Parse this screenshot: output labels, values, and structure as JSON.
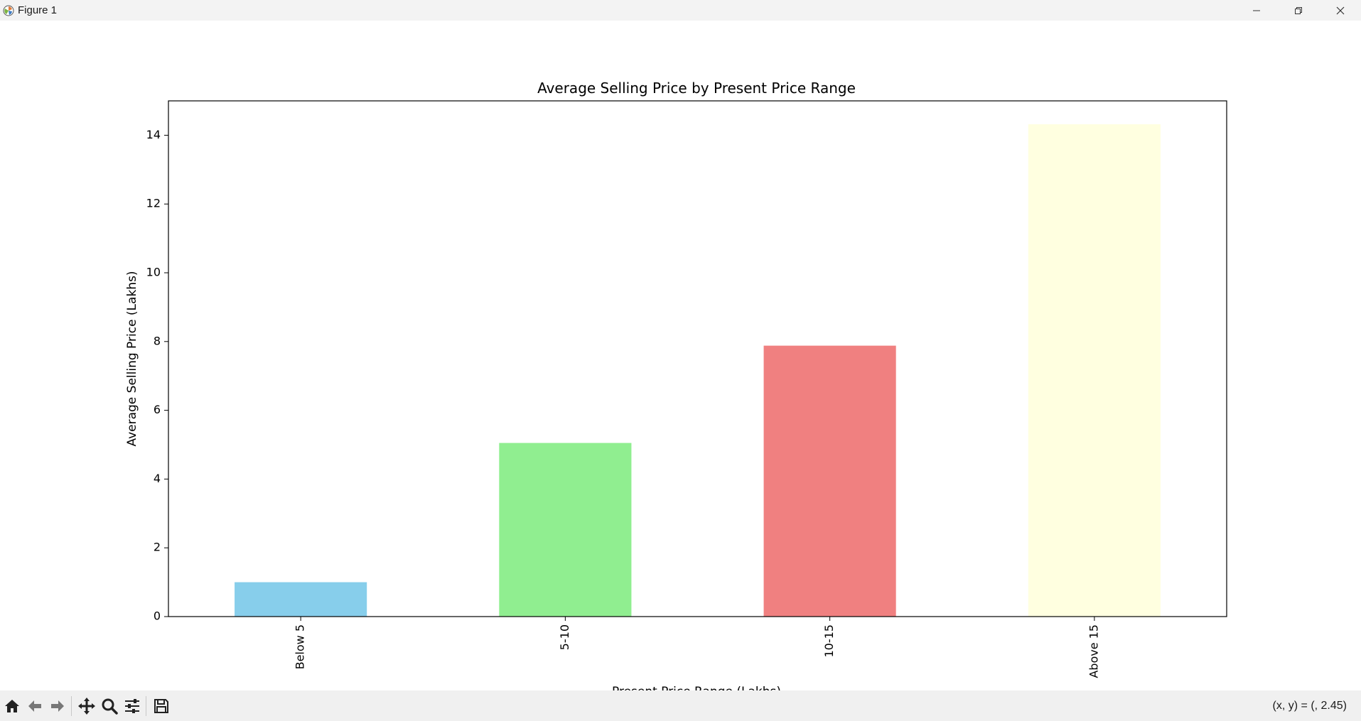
{
  "window": {
    "title": "Figure 1",
    "icons": {
      "app": "matplotlib-icon",
      "minimize": "minimize-icon",
      "restore": "restore-icon",
      "close": "close-icon"
    }
  },
  "toolbar": {
    "tools": [
      "home-icon",
      "back-arrow-icon",
      "forward-arrow-icon",
      "pan-icon",
      "zoom-icon",
      "subplots-config-icon",
      "save-icon"
    ],
    "coords_text": "(x, y) = (, 2.45)"
  },
  "chart_data": {
    "type": "bar",
    "title": "Average Selling Price by Present Price Range",
    "xlabel": "Present Price Range (Lakhs)",
    "ylabel": "Average Selling Price (Lakhs)",
    "categories": [
      "Below 5",
      "5-10",
      "10-15",
      "Above 15"
    ],
    "values": [
      1.0,
      5.05,
      7.88,
      14.32
    ],
    "colors": [
      "#87ceeb",
      "#90ee90",
      "#f08080",
      "#ffffe0"
    ],
    "ylim": [
      0,
      15.0
    ],
    "yticks": [
      0,
      2,
      4,
      6,
      8,
      10,
      12,
      14
    ],
    "grid": false,
    "legend": "none",
    "xtick_rotation": "vertical"
  }
}
